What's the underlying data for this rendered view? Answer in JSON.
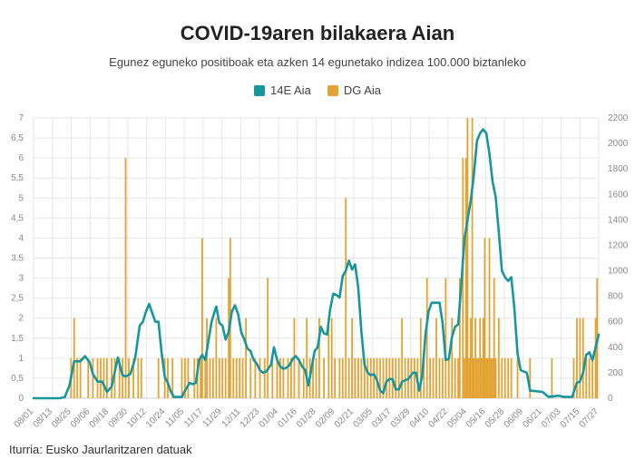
{
  "chart_data": {
    "type": "bar+line",
    "title": "COVID-19aren bilakaera Aian",
    "subtitle": "Egunez eguneko positiboak eta azken 14 egunetako indizea 100.000 biztanleko",
    "source": "Iturria: Eusko Jaurlaritzaren datuak",
    "legend_position": "top-center",
    "grid": true,
    "x_tick_labels": [
      "08/01",
      "08/13",
      "08/25",
      "09/06",
      "09/18",
      "09/30",
      "10/12",
      "10/24",
      "11/05",
      "11/17",
      "11/29",
      "12/11",
      "12/23",
      "01/04",
      "01/16",
      "01/28",
      "02/09",
      "02/21",
      "03/05",
      "03/17",
      "03/29",
      "04/10",
      "04/22",
      "05/04",
      "05/16",
      "05/28",
      "06/09",
      "06/21",
      "07/03",
      "07/15",
      "07/27"
    ],
    "y_left": {
      "min": 0,
      "max": 7,
      "ticks": [
        "0",
        "0,5",
        "1",
        "1,5",
        "2",
        "2,5",
        "3",
        "3,5",
        "4",
        "4,5",
        "5",
        "5,5",
        "6",
        "6,5",
        "7"
      ]
    },
    "y_right": {
      "min": 0,
      "max": 2200,
      "ticks": [
        "0",
        "200",
        "400",
        "600",
        "800",
        "1000",
        "1200",
        "1400",
        "1600",
        "1800",
        "2000",
        "2200"
      ]
    },
    "x_day_range": [
      0,
      362
    ],
    "series": [
      {
        "name": "14E Aia",
        "type": "line",
        "axis": "right",
        "color": "#17979b",
        "points": [
          [
            0,
            0
          ],
          [
            17,
            0
          ],
          [
            20,
            10
          ],
          [
            23,
            100
          ],
          [
            26,
            290
          ],
          [
            30,
            290
          ],
          [
            33,
            330
          ],
          [
            36,
            280
          ],
          [
            38,
            190
          ],
          [
            41,
            130
          ],
          [
            44,
            130
          ],
          [
            47,
            50
          ],
          [
            50,
            90
          ],
          [
            54,
            320
          ],
          [
            57,
            180
          ],
          [
            59,
            170
          ],
          [
            62,
            190
          ],
          [
            65,
            310
          ],
          [
            68,
            570
          ],
          [
            70,
            600
          ],
          [
            72,
            680
          ],
          [
            74,
            740
          ],
          [
            76,
            670
          ],
          [
            78,
            600
          ],
          [
            80,
            600
          ],
          [
            82,
            360
          ],
          [
            84,
            170
          ],
          [
            86,
            120
          ],
          [
            88,
            50
          ],
          [
            90,
            10
          ],
          [
            95,
            10
          ],
          [
            97,
            60
          ],
          [
            100,
            120
          ],
          [
            102,
            110
          ],
          [
            104,
            120
          ],
          [
            106,
            300
          ],
          [
            108,
            340
          ],
          [
            110,
            300
          ],
          [
            112,
            450
          ],
          [
            114,
            600
          ],
          [
            116,
            680
          ],
          [
            117,
            720
          ],
          [
            119,
            590
          ],
          [
            121,
            570
          ],
          [
            123,
            460
          ],
          [
            125,
            520
          ],
          [
            127,
            680
          ],
          [
            129,
            730
          ],
          [
            131,
            660
          ],
          [
            133,
            520
          ],
          [
            135,
            460
          ],
          [
            137,
            390
          ],
          [
            139,
            370
          ],
          [
            141,
            300
          ],
          [
            143,
            270
          ],
          [
            145,
            220
          ],
          [
            147,
            200
          ],
          [
            149,
            210
          ],
          [
            152,
            260
          ],
          [
            154,
            400
          ],
          [
            156,
            300
          ],
          [
            158,
            250
          ],
          [
            160,
            230
          ],
          [
            162,
            240
          ],
          [
            164,
            260
          ],
          [
            166,
            310
          ],
          [
            168,
            330
          ],
          [
            170,
            300
          ],
          [
            172,
            250
          ],
          [
            174,
            220
          ],
          [
            176,
            100
          ],
          [
            178,
            230
          ],
          [
            180,
            370
          ],
          [
            182,
            400
          ],
          [
            184,
            560
          ],
          [
            186,
            510
          ],
          [
            188,
            500
          ],
          [
            190,
            700
          ],
          [
            192,
            820
          ],
          [
            194,
            810
          ],
          [
            196,
            790
          ],
          [
            198,
            960
          ],
          [
            200,
            1000
          ],
          [
            202,
            1080
          ],
          [
            204,
            1010
          ],
          [
            206,
            1050
          ],
          [
            208,
            860
          ],
          [
            210,
            520
          ],
          [
            212,
            260
          ],
          [
            214,
            200
          ],
          [
            216,
            180
          ],
          [
            218,
            190
          ],
          [
            220,
            140
          ],
          [
            222,
            60
          ],
          [
            224,
            40
          ],
          [
            226,
            130
          ],
          [
            228,
            150
          ],
          [
            230,
            150
          ],
          [
            232,
            70
          ],
          [
            234,
            70
          ],
          [
            236,
            130
          ],
          [
            240,
            150
          ],
          [
            243,
            200
          ],
          [
            245,
            200
          ],
          [
            247,
            60
          ],
          [
            249,
            180
          ],
          [
            251,
            500
          ],
          [
            253,
            680
          ],
          [
            255,
            750
          ],
          [
            260,
            750
          ],
          [
            262,
            590
          ],
          [
            264,
            300
          ],
          [
            266,
            310
          ],
          [
            268,
            480
          ],
          [
            270,
            560
          ],
          [
            272,
            580
          ],
          [
            274,
            900
          ],
          [
            276,
            1250
          ],
          [
            278,
            1400
          ],
          [
            280,
            1550
          ],
          [
            282,
            1750
          ],
          [
            284,
            2020
          ],
          [
            286,
            2080
          ],
          [
            288,
            2110
          ],
          [
            290,
            2080
          ],
          [
            292,
            1920
          ],
          [
            294,
            1700
          ],
          [
            296,
            1580
          ],
          [
            298,
            1300
          ],
          [
            300,
            1000
          ],
          [
            302,
            950
          ],
          [
            304,
            920
          ],
          [
            306,
            950
          ],
          [
            308,
            700
          ],
          [
            310,
            350
          ],
          [
            312,
            220
          ],
          [
            316,
            200
          ],
          [
            318,
            60
          ],
          [
            326,
            50
          ],
          [
            330,
            10
          ],
          [
            336,
            20
          ],
          [
            340,
            10
          ],
          [
            345,
            10
          ],
          [
            348,
            120
          ],
          [
            350,
            130
          ],
          [
            352,
            200
          ],
          [
            354,
            340
          ],
          [
            356,
            360
          ],
          [
            358,
            300
          ],
          [
            360,
            400
          ],
          [
            362,
            500
          ]
        ]
      },
      {
        "name": "DG Aia",
        "type": "bar",
        "axis": "left",
        "color": "#e3a232",
        "points": [
          [
            24,
            1
          ],
          [
            26,
            2
          ],
          [
            28,
            1
          ],
          [
            30,
            1
          ],
          [
            35,
            1
          ],
          [
            38,
            1
          ],
          [
            41,
            1
          ],
          [
            43,
            1
          ],
          [
            45,
            1
          ],
          [
            47,
            1
          ],
          [
            50,
            1
          ],
          [
            52,
            1
          ],
          [
            55,
            1
          ],
          [
            57,
            1
          ],
          [
            59,
            6
          ],
          [
            61,
            1
          ],
          [
            64,
            1
          ],
          [
            67,
            1
          ],
          [
            69,
            1
          ],
          [
            80,
            1
          ],
          [
            84,
            1
          ],
          [
            86,
            1
          ],
          [
            89,
            1
          ],
          [
            95,
            1
          ],
          [
            97,
            1
          ],
          [
            99,
            1
          ],
          [
            103,
            1
          ],
          [
            105,
            1
          ],
          [
            107,
            1
          ],
          [
            108,
            4
          ],
          [
            110,
            1
          ],
          [
            111,
            2
          ],
          [
            113,
            1
          ],
          [
            115,
            1
          ],
          [
            117,
            2
          ],
          [
            119,
            1
          ],
          [
            121,
            1
          ],
          [
            123,
            1
          ],
          [
            125,
            3
          ],
          [
            126,
            4
          ],
          [
            128,
            1
          ],
          [
            130,
            1
          ],
          [
            132,
            1
          ],
          [
            134,
            1
          ],
          [
            136,
            2
          ],
          [
            139,
            1
          ],
          [
            142,
            1
          ],
          [
            145,
            1
          ],
          [
            148,
            1
          ],
          [
            150,
            3
          ],
          [
            153,
            1
          ],
          [
            156,
            1
          ],
          [
            158,
            1
          ],
          [
            160,
            1
          ],
          [
            163,
            1
          ],
          [
            165,
            1
          ],
          [
            167,
            2
          ],
          [
            170,
            1
          ],
          [
            173,
            1
          ],
          [
            175,
            2
          ],
          [
            177,
            1
          ],
          [
            179,
            1
          ],
          [
            181,
            1
          ],
          [
            183,
            2
          ],
          [
            186,
            1
          ],
          [
            189,
            2
          ],
          [
            191,
            2
          ],
          [
            193,
            1
          ],
          [
            196,
            1
          ],
          [
            198,
            1
          ],
          [
            200,
            5
          ],
          [
            202,
            1
          ],
          [
            204,
            2
          ],
          [
            206,
            1
          ],
          [
            208,
            1
          ],
          [
            210,
            1
          ],
          [
            212,
            1
          ],
          [
            214,
            1
          ],
          [
            216,
            1
          ],
          [
            218,
            1
          ],
          [
            220,
            1
          ],
          [
            222,
            1
          ],
          [
            224,
            1
          ],
          [
            226,
            1
          ],
          [
            228,
            1
          ],
          [
            230,
            1
          ],
          [
            232,
            1
          ],
          [
            234,
            1
          ],
          [
            236,
            2
          ],
          [
            238,
            1
          ],
          [
            240,
            1
          ],
          [
            242,
            1
          ],
          [
            244,
            1
          ],
          [
            246,
            1
          ],
          [
            248,
            2
          ],
          [
            250,
            1
          ],
          [
            252,
            3
          ],
          [
            254,
            1
          ],
          [
            256,
            1
          ],
          [
            258,
            2
          ],
          [
            260,
            1
          ],
          [
            262,
            1
          ],
          [
            264,
            3
          ],
          [
            266,
            1
          ],
          [
            268,
            2
          ],
          [
            270,
            1
          ],
          [
            272,
            1
          ],
          [
            273,
            3
          ],
          [
            275,
            6
          ],
          [
            276,
            1
          ],
          [
            277,
            6
          ],
          [
            278,
            7
          ],
          [
            279,
            1
          ],
          [
            280,
            2
          ],
          [
            281,
            7
          ],
          [
            282,
            1
          ],
          [
            283,
            2
          ],
          [
            284,
            1
          ],
          [
            285,
            1
          ],
          [
            286,
            2
          ],
          [
            287,
            1
          ],
          [
            288,
            2
          ],
          [
            289,
            4
          ],
          [
            290,
            1
          ],
          [
            291,
            1
          ],
          [
            292,
            4
          ],
          [
            293,
            1
          ],
          [
            294,
            1
          ],
          [
            295,
            3
          ],
          [
            296,
            1
          ],
          [
            298,
            2
          ],
          [
            300,
            1
          ],
          [
            302,
            1
          ],
          [
            304,
            1
          ],
          [
            306,
            1
          ],
          [
            310,
            1
          ],
          [
            318,
            1
          ],
          [
            332,
            1
          ],
          [
            346,
            1
          ],
          [
            348,
            2
          ],
          [
            350,
            2
          ],
          [
            352,
            2
          ],
          [
            354,
            1
          ],
          [
            356,
            1
          ],
          [
            358,
            1
          ],
          [
            360,
            2
          ],
          [
            361,
            3
          ]
        ]
      }
    ]
  },
  "legend": [
    {
      "label": "14E Aia",
      "color": "#17979b"
    },
    {
      "label": "DG Aia",
      "color": "#e3a232"
    }
  ]
}
